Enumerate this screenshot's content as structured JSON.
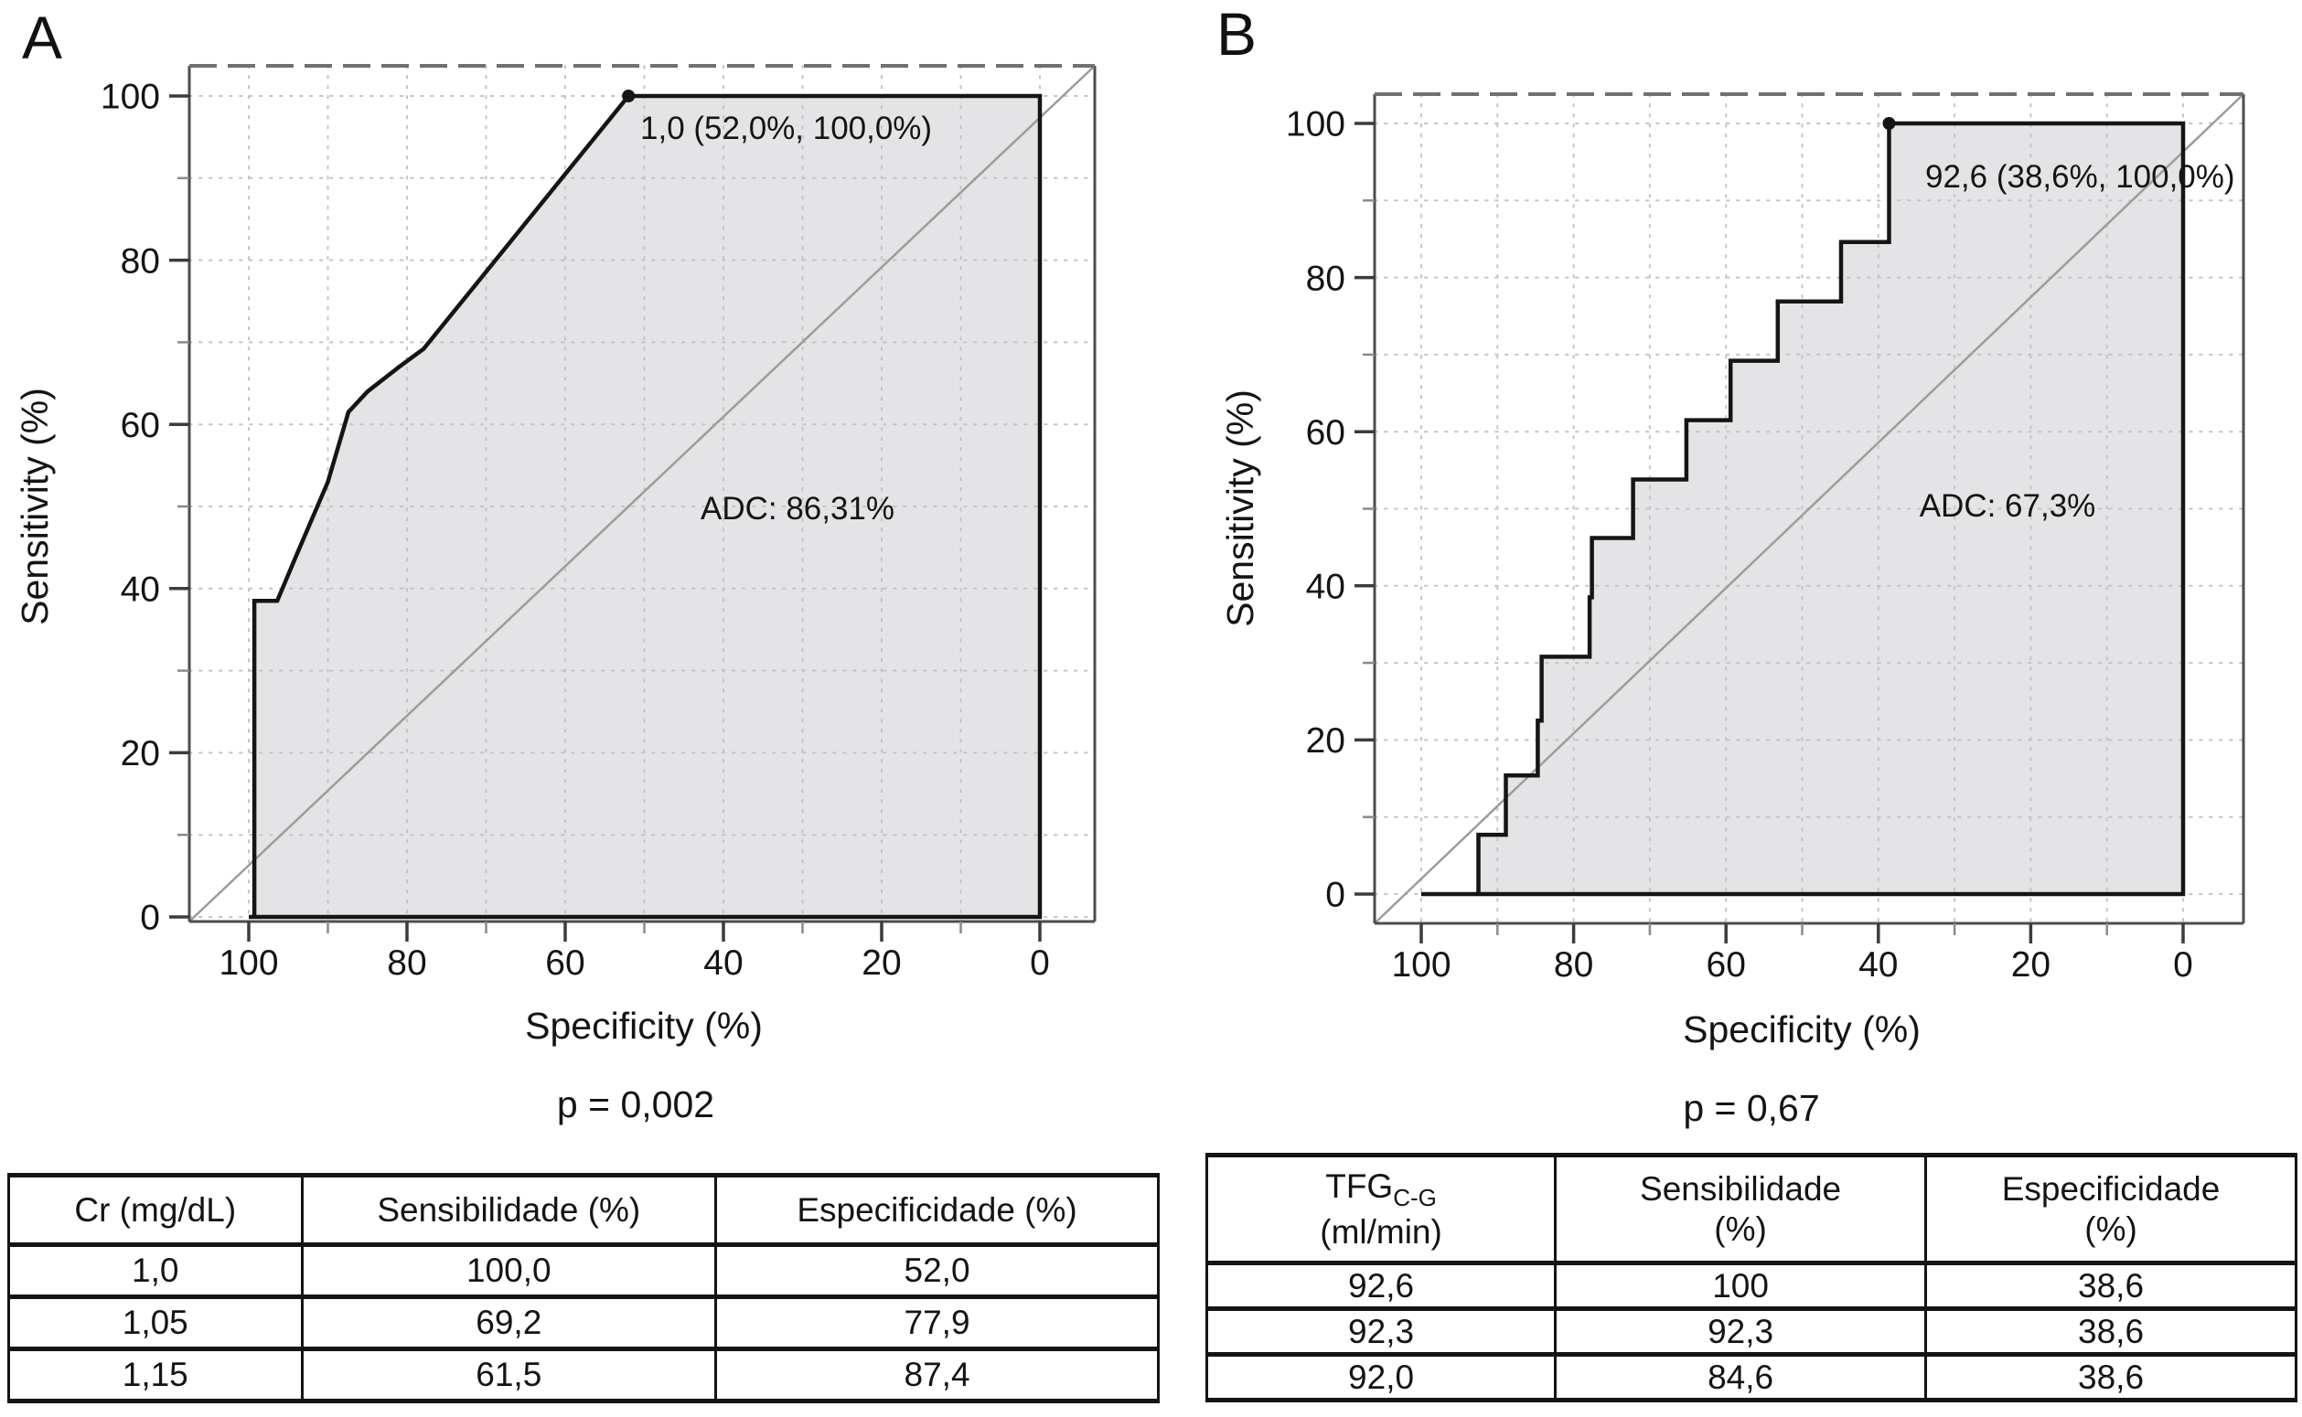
{
  "figure": {
    "panel_a_label": "A",
    "panel_b_label": "B"
  },
  "chart_data": [
    {
      "type": "area",
      "panel_label": "A",
      "xlabel": "Specificity (%)",
      "ylabel": "Sensitivity (%)",
      "x_ticks": [
        100,
        80,
        60,
        40,
        20,
        0
      ],
      "y_ticks": [
        0,
        20,
        40,
        60,
        80,
        100
      ],
      "xlim": [
        100,
        0
      ],
      "ylim": [
        0,
        100
      ],
      "x_axis_reversed": true,
      "grid": true,
      "grid_step": 10,
      "diagonal_reference": true,
      "legend_position": "none",
      "auc_label": "ADC: 86,31%",
      "auc_value_pct": 86.31,
      "p_label": "p = 0,002",
      "cutoff_marker": {
        "threshold": "1,0",
        "specificity": 52.0,
        "sensitivity": 100.0,
        "label": "1,0 (52,0%, 100,0%)"
      },
      "roc_points_spec_sens": [
        [
          100,
          0
        ],
        [
          99.3,
          0
        ],
        [
          99.3,
          38.5
        ],
        [
          96.4,
          38.5
        ],
        [
          94,
          44
        ],
        [
          90,
          53
        ],
        [
          87.4,
          61.5
        ],
        [
          85,
          64
        ],
        [
          81,
          67
        ],
        [
          77.9,
          69.2
        ],
        [
          52,
          100
        ],
        [
          0,
          100
        ]
      ]
    },
    {
      "type": "area",
      "panel_label": "B",
      "xlabel": "Specificity (%)",
      "ylabel": "Sensitivity (%)",
      "x_ticks": [
        100,
        80,
        60,
        40,
        20,
        0
      ],
      "y_ticks": [
        0,
        20,
        40,
        60,
        80,
        100
      ],
      "xlim": [
        100,
        0
      ],
      "ylim": [
        0,
        100
      ],
      "x_axis_reversed": true,
      "grid": true,
      "grid_step": 10,
      "diagonal_reference": true,
      "legend_position": "none",
      "auc_label": "ADC: 67,3%",
      "auc_value_pct": 67.3,
      "p_label": "p = 0,67",
      "cutoff_marker": {
        "threshold": "92,6",
        "specificity": 38.6,
        "sensitivity": 100.0,
        "label": "92,6 (38,6%, 100,0%)"
      },
      "roc_points_spec_sens": [
        [
          100,
          0
        ],
        [
          92.5,
          0
        ],
        [
          92.5,
          7.7
        ],
        [
          88.9,
          7.7
        ],
        [
          88.9,
          15.4
        ],
        [
          84.7,
          15.4
        ],
        [
          84.7,
          22.5
        ],
        [
          84.2,
          22.5
        ],
        [
          84.2,
          30.8
        ],
        [
          77.9,
          30.8
        ],
        [
          77.9,
          38.5
        ],
        [
          77.6,
          38.5
        ],
        [
          77.6,
          46.2
        ],
        [
          72.2,
          46.2
        ],
        [
          72.2,
          53.8
        ],
        [
          65.2,
          53.8
        ],
        [
          65.2,
          61.5
        ],
        [
          59.4,
          61.5
        ],
        [
          59.4,
          69.2
        ],
        [
          53.2,
          69.2
        ],
        [
          53.2,
          76.9
        ],
        [
          44.9,
          76.9
        ],
        [
          44.9,
          84.6
        ],
        [
          38.6,
          84.6
        ],
        [
          38.6,
          100
        ],
        [
          0,
          100
        ]
      ]
    }
  ],
  "tables": [
    {
      "headers": [
        "Cr (mg/dL)",
        "Sensibilidade (%)",
        "Especificidade (%)"
      ],
      "rows": [
        [
          "1,0",
          "100,0",
          "52,0"
        ],
        [
          "1,05",
          "69,2",
          "77,9"
        ],
        [
          "1,15",
          "61,5",
          "87,4"
        ]
      ]
    },
    {
      "headers": [
        {
          "main": "TFG",
          "sub": "C-G",
          "line2": "(ml/min)"
        },
        {
          "line1": "Sensibilidade",
          "line2": "(%)"
        },
        {
          "line1": "Especificidade",
          "line2": "(%)"
        }
      ],
      "rows": [
        [
          "92,6",
          "100",
          "38,6"
        ],
        [
          "92,3",
          "92,3",
          "38,6"
        ],
        [
          "92,0",
          "84,6",
          "38,6"
        ]
      ]
    }
  ],
  "colors": {
    "curve": "#151515",
    "area_fill": "#e4e4e6",
    "diagonal": "#9c9c9c",
    "grid": "#c4c4c6",
    "border": "#4d4d4d",
    "border_top_dashed": "#707070",
    "text": "#141414"
  }
}
